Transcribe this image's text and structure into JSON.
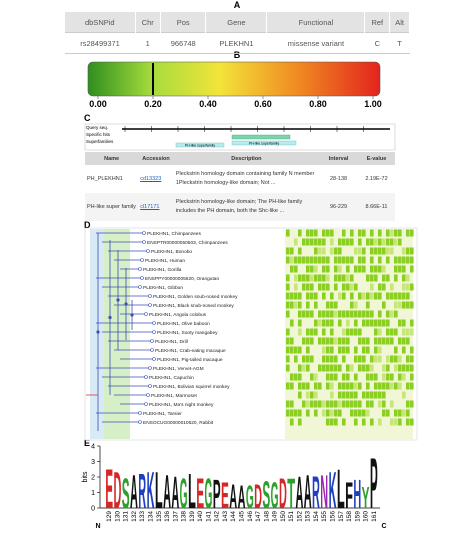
{
  "panel_labels": [
    "A",
    "B",
    "C",
    "D",
    "E"
  ],
  "snp_table": {
    "headers": [
      "dbSNPid",
      "Chr",
      "Pos",
      "Gene",
      "Functional",
      "Ref",
      "Alt"
    ],
    "row": [
      "rs28499371",
      "1",
      "966748",
      "PLEKHN1",
      "missense variant",
      "C",
      "T"
    ]
  },
  "score_bar": {
    "xlim": [
      0,
      1
    ],
    "xticks": [
      {
        "value": 0,
        "label": "0.00"
      },
      {
        "value": 0.2,
        "label": "0.20"
      },
      {
        "value": 0.4,
        "label": "0.40"
      },
      {
        "value": 0.6,
        "label": "0.60"
      },
      {
        "value": 0.8,
        "label": "0.80"
      },
      {
        "value": 1,
        "label": "1.00"
      }
    ],
    "marker": 0.2
  },
  "domain_graphic": {
    "track_labels": [
      "Query seq.",
      "Specific hits",
      "Superfamilies"
    ],
    "hit_labels": [
      "PH-like superfamily",
      "PH-like superfamily"
    ]
  },
  "domain_table": {
    "headers": [
      "Name",
      "Accession",
      "Description",
      "Interval",
      "E-value"
    ],
    "rows": [
      [
        "PH_PLEKHN1",
        "cd13323",
        "Pleckstrin homology domain containing family N member 1Pleckstrin homology-like domain; Not ...",
        "28-138",
        "2.19E-72"
      ],
      [
        "PH-like super family",
        "cl17171",
        "Pleckstrin homology-like domain; The PH-like family includes the PH domain, both the Shc-like ...",
        "96-229",
        "8.66E-11"
      ]
    ]
  },
  "tree": {
    "leaves": [
      "PLEKHN1, Chimpanzees",
      "ENSPTR00000050503, Chimpanzees",
      "PLEKHN1, Bonobo",
      "PLEKHN1, Human",
      "PLEKHN1, Gorilla",
      "ENSPPY00000005620, Orangutan",
      "PLEKHN1, Gibbon",
      "PLEKHN1, Golden snub-nosed monkey",
      "PLEKHN1, Black snub-nosed monkey",
      "PLEKHN1, Angola colobus",
      "PLEKHN1, Olive baboon",
      "PLEKHN1, Sooty mangabey",
      "PLEKHN1, Drill",
      "PLEKHN1, Crab-eating macaque",
      "PLEKHN1, Pig-tailed macaque",
      "PLEKHN1, Vervet-AGM",
      "PLEKHN1, Capuchin",
      "PLEKHN1, Bolivian squirrel monkey",
      "PLEKHN1, Marmoset",
      "PLEKHN1, Ma's night monkey",
      "PLEKHN1, Tarsier",
      "ENSOCUG00000010620, Rabbit"
    ]
  },
  "logo": {
    "ylabel": "bits",
    "ylim": [
      0,
      4
    ],
    "yticks": [
      0,
      1,
      2,
      3,
      4
    ],
    "start_label": "N",
    "end_label": "C",
    "positions": [
      "129",
      "130",
      "131",
      "132",
      "133",
      "134",
      "135",
      "136",
      "137",
      "138",
      "139",
      "140",
      "141",
      "142",
      "143",
      "144",
      "145",
      "146",
      "147",
      "148",
      "149",
      "150",
      "151",
      "152",
      "153",
      "154",
      "155",
      "156",
      "157",
      "158",
      "159",
      "160",
      "161"
    ],
    "letters": [
      "E",
      "D",
      "S",
      "A",
      "R",
      "K",
      "L",
      "A",
      "A",
      "G",
      "L",
      "E",
      "G",
      "P",
      "E",
      "A",
      "A",
      "G",
      "D",
      "S",
      "G",
      "D",
      "T",
      "A",
      "A",
      "R",
      "N",
      "K",
      "L",
      "F",
      "H",
      "Y",
      "P"
    ],
    "heights": [
      2.6,
      2.4,
      2.0,
      2.2,
      2.3,
      2.4,
      2.4,
      2.2,
      2.1,
      2.0,
      2.3,
      2.0,
      2.0,
      1.9,
      1.7,
      1.6,
      1.5,
      1.5,
      1.6,
      1.8,
      1.7,
      2.0,
      2.0,
      2.1,
      2.2,
      2.1,
      2.2,
      2.4,
      2.6,
      1.7,
      1.9,
      1.4,
      3.3
    ],
    "letter_colors": {
      "D": "#d62728",
      "E": "#d62728",
      "K": "#1f3fbf",
      "R": "#1f3fbf",
      "H": "#1f3fbf",
      "S": "#2ca02c",
      "T": "#2ca02c",
      "G": "#2ca02c",
      "Y": "#2ca02c",
      "C": "#2ca02c",
      "N": "#9c27b0",
      "Q": "#9c27b0",
      "A": "#111111",
      "V": "#111111",
      "L": "#111111",
      "I": "#111111",
      "P": "#111111",
      "W": "#111111",
      "F": "#111111",
      "M": "#111111"
    }
  }
}
